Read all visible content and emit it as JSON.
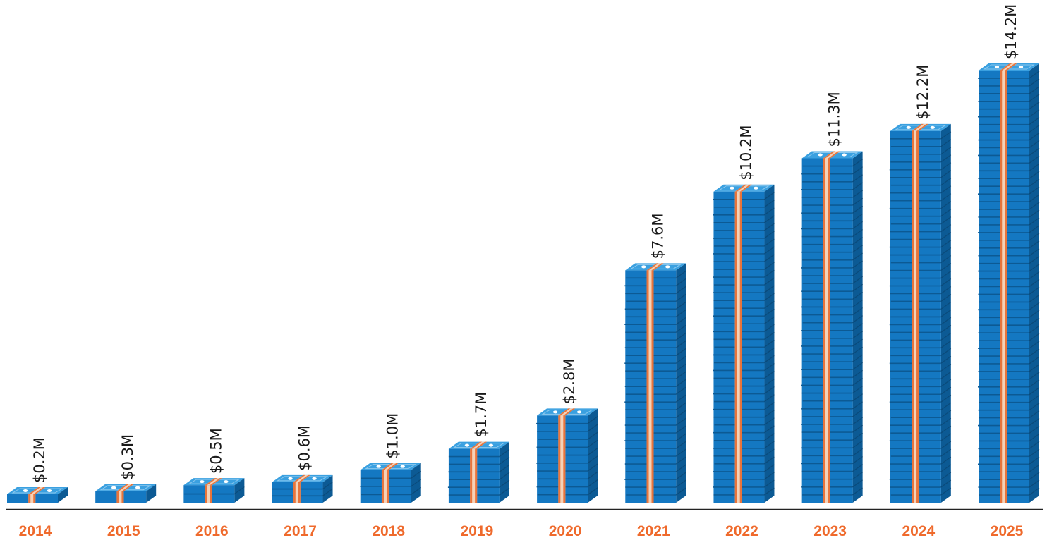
{
  "chart_data": {
    "type": "bar",
    "categories": [
      "2014",
      "2015",
      "2016",
      "2017",
      "2018",
      "2019",
      "2020",
      "2021",
      "2022",
      "2023",
      "2024",
      "2025"
    ],
    "values": [
      0.2,
      0.3,
      0.5,
      0.6,
      1.0,
      1.7,
      2.8,
      7.6,
      10.2,
      11.3,
      12.2,
      14.2
    ],
    "value_labels": [
      "$0.2M",
      "$0.3M",
      "$0.5M",
      "$0.6M",
      "$1.0M",
      "$1.7M",
      "$2.8M",
      "$7.6M",
      "$10.2M",
      "$11.3M",
      "$12.2M",
      "$14.2M"
    ],
    "title": "",
    "xlabel": "",
    "ylabel": "",
    "ylim": [
      0,
      14.2
    ],
    "grid": false,
    "bar_style": "stacked-money-bundles",
    "colors": {
      "bill_blue": "#1478c2",
      "bill_light": "#3aa0e0",
      "bill_dark": "#0c5a94",
      "band_orange": "#e8743b",
      "band_light": "#f4d2b8",
      "year_label": "#ef6a2c",
      "value_label": "#1a1a1a",
      "axis": "#222222"
    }
  }
}
